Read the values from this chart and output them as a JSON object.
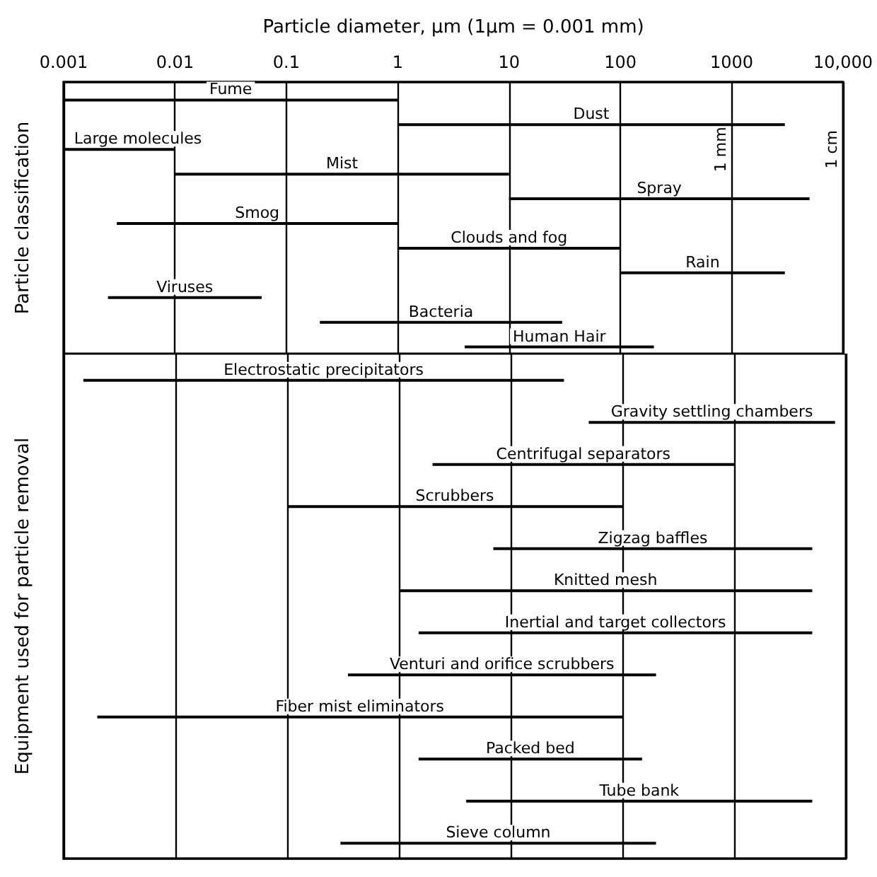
{
  "chart_data": [
    {
      "type": "bar",
      "orientation": "horizontal",
      "xlabel": "Particle diameter, μm (1μm = 0.001 mm)",
      "ylabel": "Particle classification",
      "categories": [
        "Fume",
        "Dust",
        "Large molecules",
        "Mist",
        "Spray",
        "Smog",
        "Clouds and fog",
        "Rain",
        "Viruses",
        "Bacteria",
        "Human Hair"
      ],
      "base": [
        0.001,
        1,
        0.001,
        0.01,
        10,
        0.003,
        1,
        100,
        0.0025,
        0.2,
        4
      ],
      "values": [
        0.999,
        2999,
        0.009,
        9.99,
        4990,
        0.997,
        99,
        2900,
        0.0575,
        29.8,
        196
      ],
      "color": "#000000",
      "log": "x",
      "xlim": [
        0.001,
        10000
      ],
      "xticks": [
        0.001,
        0.01,
        0.1,
        1,
        10,
        100,
        1000,
        {
          "value": 10000,
          "label": "10,000"
        }
      ],
      "grid": "x",
      "tick_labels": "x",
      "annotations": [
        "1 mm",
        "1 cm"
      ]
    },
    {
      "type": "bar",
      "orientation": "horizontal",
      "ylabel": "Equipment used for particle removal",
      "categories": [
        "Electrostatic precipitators",
        "Gravity settling chambers",
        "Centrifugal separators",
        "Scrubbers",
        "Zigzag baffles",
        "Knitted mesh",
        "Inertial and target collectors",
        "Venturi and orifice scrubbers",
        "Fiber mist eliminators",
        "Packed bed",
        "Tube bank",
        "Sieve column"
      ],
      "base": [
        0.0015,
        50,
        2,
        0.1,
        7,
        1,
        1.5,
        0.35,
        0.002,
        1.5,
        4,
        0.3
      ],
      "values": [
        29.9985,
        7950,
        998,
        99.9,
        4993,
        4999,
        4998.5,
        199.65,
        99.998,
        148.5,
        4996,
        199.7
      ],
      "color": "#000000",
      "log": "x",
      "xlim": [
        0.001,
        10000
      ],
      "xticks": [
        0.001,
        0.01,
        0.1,
        1,
        10,
        100,
        1000,
        10000
      ],
      "grid": "x",
      "tick_labels": false
    }
  ]
}
